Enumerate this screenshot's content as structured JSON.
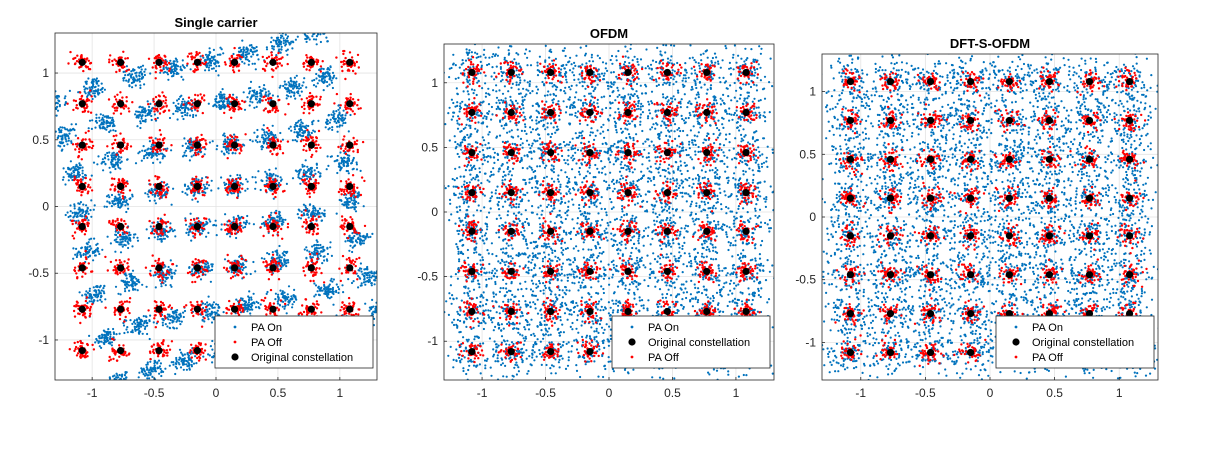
{
  "chart_data": [
    {
      "type": "scatter",
      "title": "Single carrier",
      "xlabel": "",
      "ylabel": "",
      "xlim": [
        -1.3,
        1.3
      ],
      "ylim": [
        -1.3,
        1.3
      ],
      "xticks": [
        -1,
        -0.5,
        0,
        0.5,
        1
      ],
      "xtick_labels": [
        "-1",
        "-0.5",
        "0",
        "0.5",
        "1"
      ],
      "yticks": [
        -1,
        -0.5,
        0,
        0.5,
        1
      ],
      "ytick_labels": [
        "-1",
        "-0.5",
        "0",
        "0.5",
        "1"
      ],
      "grid": true,
      "legend_position": "bottom-right",
      "constellation_levels": [
        -1.08,
        -0.77,
        -0.46,
        -0.15,
        0.15,
        0.46,
        0.77,
        1.08
      ],
      "series": [
        {
          "name": "PA On",
          "marker": "point",
          "color": "#0072BD",
          "spread": 0.05,
          "rotation_deg": 14
        },
        {
          "name": "PA Off",
          "marker": "point",
          "color": "#FF0000",
          "spread": 0.038,
          "rotation_deg": 0
        },
        {
          "name": "Original constellation",
          "marker": "filled-circle",
          "color": "#000000"
        }
      ]
    },
    {
      "type": "scatter",
      "title": "OFDM",
      "xlabel": "",
      "ylabel": "",
      "xlim": [
        -1.3,
        1.3
      ],
      "ylim": [
        -1.3,
        1.3
      ],
      "xticks": [
        -1,
        -0.5,
        0,
        0.5,
        1
      ],
      "xtick_labels": [
        "-1",
        "-0.5",
        "0",
        "0.5",
        "1"
      ],
      "yticks": [
        -1,
        -0.5,
        0,
        0.5,
        1
      ],
      "ytick_labels": [
        "-1",
        "-0.5",
        "0",
        "0.5",
        "1"
      ],
      "grid": true,
      "legend_position": "bottom-right",
      "constellation_levels": [
        -1.08,
        -0.77,
        -0.46,
        -0.15,
        0.15,
        0.46,
        0.77,
        1.08
      ],
      "series": [
        {
          "name": "PA On",
          "marker": "point",
          "color": "#0072BD",
          "spread": 0.1,
          "rotation_deg": 0
        },
        {
          "name": "Original constellation",
          "marker": "filled-circle",
          "color": "#000000"
        },
        {
          "name": "PA Off",
          "marker": "point",
          "color": "#FF0000",
          "spread": 0.04,
          "rotation_deg": 0
        }
      ]
    },
    {
      "type": "scatter",
      "title": "DFT-S-OFDM",
      "xlabel": "",
      "ylabel": "",
      "xlim": [
        -1.3,
        1.3
      ],
      "ylim": [
        -1.3,
        1.3
      ],
      "xticks": [
        -1,
        -0.5,
        0,
        0.5,
        1
      ],
      "xtick_labels": [
        "-1",
        "-0.5",
        "0",
        "0.5",
        "1"
      ],
      "yticks": [
        -1,
        -0.5,
        0,
        0.5,
        1
      ],
      "ytick_labels": [
        "-1",
        "-0.5",
        "0",
        "0.5",
        "1"
      ],
      "grid": true,
      "legend_position": "bottom-right",
      "constellation_levels": [
        -1.08,
        -0.77,
        -0.46,
        -0.15,
        0.15,
        0.46,
        0.77,
        1.08
      ],
      "series": [
        {
          "name": "PA On",
          "marker": "point",
          "color": "#0072BD",
          "spread": 0.1,
          "rotation_deg": 0
        },
        {
          "name": "Original constellation",
          "marker": "filled-circle",
          "color": "#000000"
        },
        {
          "name": "PA Off",
          "marker": "point",
          "color": "#FF0000",
          "spread": 0.04,
          "rotation_deg": 0
        }
      ]
    }
  ]
}
